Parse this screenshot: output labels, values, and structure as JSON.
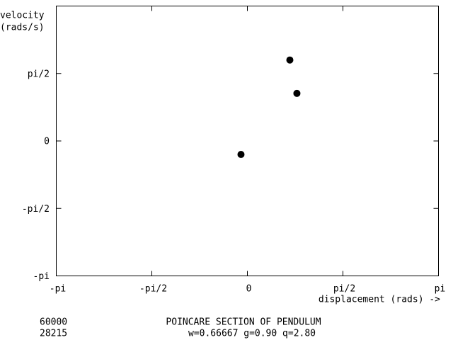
{
  "chart_data": {
    "type": "scatter",
    "title": "POINCARE SECTION OF PENDULUM",
    "subtitle": "w=0.66667 g=0.90 q=2.80",
    "annotations": [
      "60000",
      "28215"
    ],
    "xlabel": "displacement (rads) ->",
    "ylabel_lines": [
      "velocity",
      "(rads/s)"
    ],
    "xlim": [
      -3.1416,
      3.1416
    ],
    "ylim": [
      -3.1416,
      3.1416
    ],
    "xticks": [
      {
        "value": -3.1416,
        "label": "-pi"
      },
      {
        "value": -1.5708,
        "label": "-pi/2"
      },
      0,
      {
        "value": 1.5708,
        "label": "pi/2"
      },
      {
        "value": 3.1416,
        "label": "pi"
      }
    ],
    "yticks": [
      {
        "value": -3.1416,
        "label": "-pi"
      },
      {
        "value": -1.5708,
        "label": "-pi/2"
      },
      0,
      {
        "value": 1.5708,
        "label": "pi/2"
      }
    ],
    "color": "#000000",
    "x": [
      0.698,
      0.814,
      -0.105
    ],
    "values": [
      1.885,
      1.108,
      -0.314
    ]
  }
}
